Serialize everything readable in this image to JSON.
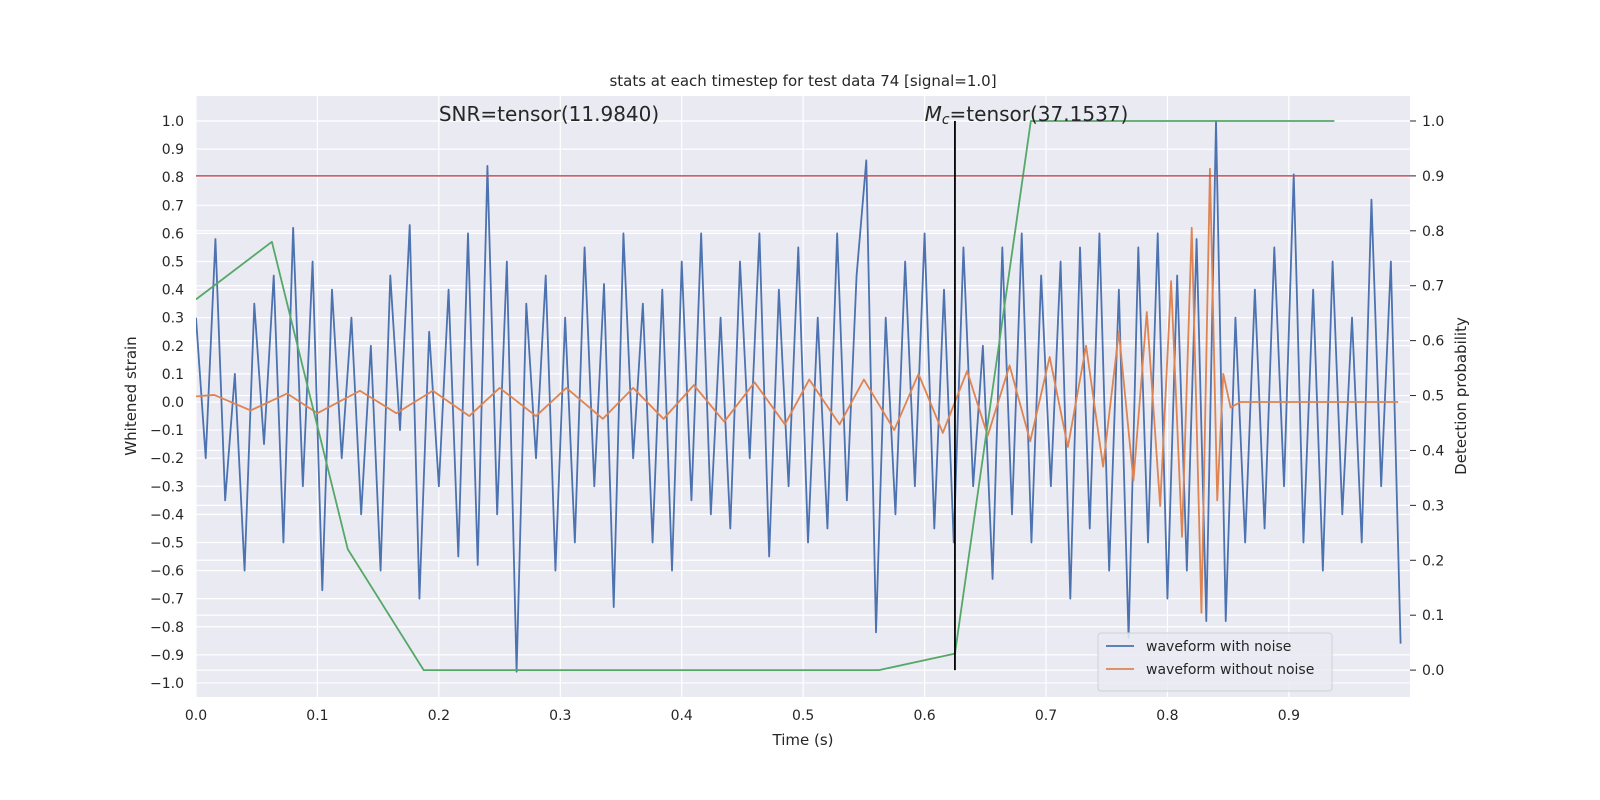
{
  "chart_data": {
    "type": "line",
    "title": "stats at each timestep for test data 74 [signal=1.0]",
    "xlabel": "Time (s)",
    "ylabel": "Whitened strain",
    "y2label": "Detection probability",
    "xlim": [
      0,
      0.99975
    ],
    "ylim": [
      -1.05,
      1.089
    ],
    "y2lim": [
      -0.049,
      1.0455
    ],
    "xticks": [
      {
        "value": 0,
        "label": "0.0"
      },
      {
        "value": 0.1,
        "label": "0.1"
      },
      {
        "value": 0.2,
        "label": "0.2"
      },
      {
        "value": 0.3,
        "label": "0.3"
      },
      {
        "value": 0.4,
        "label": "0.4"
      },
      {
        "value": 0.5,
        "label": "0.5"
      },
      {
        "value": 0.6,
        "label": "0.6"
      },
      {
        "value": 0.7,
        "label": "0.7"
      },
      {
        "value": 0.8,
        "label": "0.8"
      },
      {
        "value": 0.9,
        "label": "0.9"
      }
    ],
    "yticks": [
      {
        "value": -1.0,
        "label": "−1.0"
      },
      {
        "value": -0.9,
        "label": "−0.9"
      },
      {
        "value": -0.8,
        "label": "−0.8"
      },
      {
        "value": -0.7,
        "label": "−0.7"
      },
      {
        "value": -0.6,
        "label": "−0.6"
      },
      {
        "value": -0.5,
        "label": "−0.5"
      },
      {
        "value": -0.4,
        "label": "−0.4"
      },
      {
        "value": -0.3,
        "label": "−0.3"
      },
      {
        "value": -0.2,
        "label": "−0.2"
      },
      {
        "value": -0.1,
        "label": "−0.1"
      },
      {
        "value": 0,
        "label": "0.0"
      },
      {
        "value": 0.1,
        "label": "0.1"
      },
      {
        "value": 0.2,
        "label": "0.2"
      },
      {
        "value": 0.3,
        "label": "0.3"
      },
      {
        "value": 0.4,
        "label": "0.4"
      },
      {
        "value": 0.5,
        "label": "0.5"
      },
      {
        "value": 0.6,
        "label": "0.6"
      },
      {
        "value": 0.7,
        "label": "0.7"
      },
      {
        "value": 0.8,
        "label": "0.8"
      },
      {
        "value": 0.9,
        "label": "0.9"
      },
      {
        "value": 1.0,
        "label": "1.0"
      }
    ],
    "y2ticks": [
      {
        "value": 0,
        "label": "0.0"
      },
      {
        "value": 0.1,
        "label": "0.1"
      },
      {
        "value": 0.2,
        "label": "0.2"
      },
      {
        "value": 0.3,
        "label": "0.3"
      },
      {
        "value": 0.4,
        "label": "0.4"
      },
      {
        "value": 0.5,
        "label": "0.5"
      },
      {
        "value": 0.6,
        "label": "0.6"
      },
      {
        "value": 0.7,
        "label": "0.7"
      },
      {
        "value": 0.8,
        "label": "0.8"
      },
      {
        "value": 0.9,
        "label": "0.9"
      },
      {
        "value": 1.0,
        "label": "1.0"
      }
    ],
    "grid": true,
    "legend": "lower right",
    "series": [
      {
        "name": "waveform with noise",
        "color": "#4c72b0",
        "x": [
          0,
          0.008,
          0.016,
          0.024,
          0.032,
          0.04,
          0.048,
          0.056,
          0.064,
          0.072,
          0.08,
          0.088,
          0.096,
          0.104,
          0.112,
          0.12,
          0.128,
          0.136,
          0.144,
          0.152,
          0.16,
          0.168,
          0.176,
          0.184,
          0.192,
          0.2,
          0.208,
          0.216,
          0.224,
          0.232,
          0.24,
          0.248,
          0.256,
          0.264,
          0.272,
          0.28,
          0.288,
          0.296,
          0.304,
          0.312,
          0.32,
          0.328,
          0.336,
          0.344,
          0.352,
          0.36,
          0.368,
          0.376,
          0.384,
          0.392,
          0.4,
          0.408,
          0.416,
          0.424,
          0.432,
          0.44,
          0.448,
          0.456,
          0.464,
          0.472,
          0.48,
          0.488,
          0.496,
          0.504,
          0.512,
          0.52,
          0.528,
          0.536,
          0.544,
          0.552,
          0.56,
          0.568,
          0.576,
          0.584,
          0.592,
          0.6,
          0.608,
          0.616,
          0.624,
          0.632,
          0.64,
          0.648,
          0.656,
          0.664,
          0.672,
          0.68,
          0.688,
          0.696,
          0.704,
          0.712,
          0.72,
          0.728,
          0.736,
          0.744,
          0.752,
          0.76,
          0.768,
          0.776,
          0.784,
          0.792,
          0.8,
          0.808,
          0.816,
          0.824,
          0.832,
          0.84,
          0.848,
          0.856,
          0.864,
          0.872,
          0.88,
          0.888,
          0.896,
          0.904,
          0.912,
          0.92,
          0.928,
          0.936,
          0.944,
          0.952,
          0.96,
          0.968,
          0.976,
          0.984,
          0.992
        ],
        "values": [
          0.3,
          -0.2,
          0.58,
          -0.35,
          0.1,
          -0.6,
          0.35,
          -0.15,
          0.45,
          -0.5,
          0.62,
          -0.3,
          0.5,
          -0.67,
          0.4,
          -0.2,
          0.3,
          -0.4,
          0.2,
          -0.6,
          0.45,
          -0.1,
          0.63,
          -0.7,
          0.25,
          -0.3,
          0.4,
          -0.55,
          0.6,
          -0.58,
          0.84,
          -0.4,
          0.5,
          -0.96,
          0.35,
          -0.2,
          0.45,
          -0.6,
          0.3,
          -0.5,
          0.55,
          -0.3,
          0.42,
          -0.73,
          0.6,
          -0.2,
          0.35,
          -0.5,
          0.4,
          -0.6,
          0.5,
          -0.35,
          0.6,
          -0.4,
          0.3,
          -0.45,
          0.5,
          -0.2,
          0.6,
          -0.55,
          0.4,
          -0.3,
          0.55,
          -0.5,
          0.3,
          -0.45,
          0.6,
          -0.35,
          0.45,
          0.86,
          -0.82,
          0.3,
          -0.4,
          0.5,
          -0.3,
          0.6,
          -0.45,
          0.4,
          -0.5,
          0.55,
          -0.3,
          0.2,
          -0.63,
          0.55,
          -0.4,
          0.6,
          -0.5,
          0.45,
          -0.3,
          0.5,
          -0.7,
          0.55,
          -0.45,
          0.6,
          -0.6,
          0.4,
          -0.84,
          0.55,
          -0.5,
          0.6,
          -0.7,
          0.45,
          -0.6,
          0.58,
          -0.78,
          1.0,
          -0.78,
          0.3,
          -0.5,
          0.4,
          -0.45,
          0.55,
          -0.3,
          0.81,
          -0.5,
          0.4,
          -0.6,
          0.5,
          -0.4,
          0.3,
          -0.5,
          0.72,
          -0.3,
          0.5,
          -0.86
        ]
      },
      {
        "name": "waveform without noise",
        "color": "#dd8452",
        "x": [
          0,
          0.015,
          0.045,
          0.075,
          0.1,
          0.135,
          0.165,
          0.195,
          0.225,
          0.25,
          0.28,
          0.305,
          0.335,
          0.36,
          0.385,
          0.41,
          0.435,
          0.46,
          0.485,
          0.505,
          0.53,
          0.55,
          0.575,
          0.595,
          0.615,
          0.635,
          0.652,
          0.67,
          0.687,
          0.703,
          0.718,
          0.733,
          0.747,
          0.76,
          0.772,
          0.783,
          0.794,
          0.803,
          0.812,
          0.82,
          0.828,
          0.835,
          0.841,
          0.846,
          0.852,
          0.86,
          0.99
        ],
        "values": [
          0.02,
          0.025,
          -0.03,
          0.03,
          -0.04,
          0.04,
          -0.04,
          0.04,
          -0.05,
          0.05,
          -0.05,
          0.05,
          -0.06,
          0.05,
          -0.06,
          0.06,
          -0.07,
          0.07,
          -0.08,
          0.08,
          -0.08,
          0.08,
          -0.1,
          0.1,
          -0.11,
          0.11,
          -0.12,
          0.13,
          -0.14,
          0.16,
          -0.16,
          0.2,
          -0.23,
          0.25,
          -0.28,
          0.32,
          -0.37,
          0.43,
          -0.48,
          0.62,
          -0.75,
          0.83,
          -0.35,
          0.1,
          -0.02,
          0,
          0
        ]
      },
      {
        "color": "#55a868",
        "axis": "y2",
        "x": [
          0,
          0.0625,
          0.125,
          0.1875,
          0.5625,
          0.625,
          0.6875,
          0.9375
        ],
        "values": [
          0.675,
          0.78,
          0.22,
          0.0,
          0.0,
          0.03,
          1.0,
          1.0
        ]
      }
    ],
    "threshold": {
      "value": 0.9,
      "axis": "y2",
      "color": "#c44e52"
    },
    "vline": {
      "x": 0.625,
      "ymin": 0,
      "ymax": 1,
      "axis": "y2",
      "color": "#000000"
    },
    "annotations": [
      {
        "x": 0.2,
        "y": 1.0,
        "text": "SNR=tensor(11.9840)"
      },
      {
        "x": 0.6,
        "y": 1.0,
        "symbol": "M",
        "subscript": "c",
        "text": "=tensor(37.1537)"
      }
    ]
  }
}
